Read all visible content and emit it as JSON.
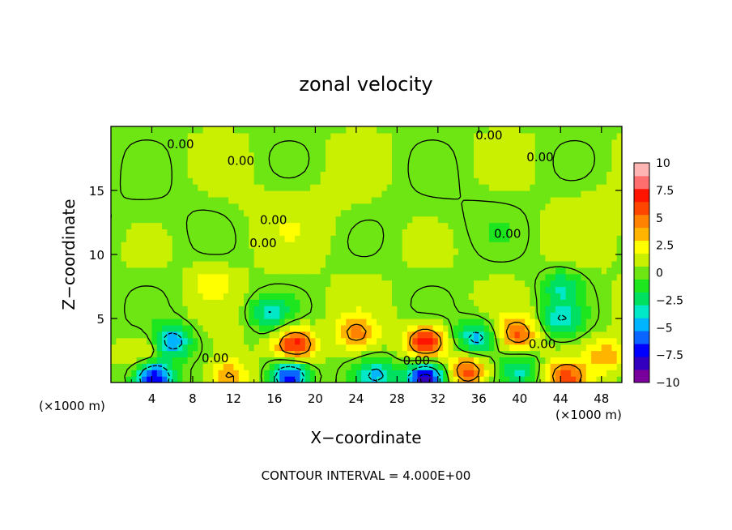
{
  "chart_data": {
    "type": "heatmap",
    "title": "zonal velocity",
    "xlabel": "X−coordinate",
    "ylabel": "Z−coordinate",
    "x_unit_label": "(×1000 m)",
    "x_unit_label_right": "(×1000 m)",
    "xlim": [
      0,
      50
    ],
    "ylim": [
      0,
      20
    ],
    "x_ticks": [
      4,
      8,
      12,
      16,
      20,
      24,
      28,
      32,
      36,
      40,
      44,
      48
    ],
    "x_tick_labels": [
      "4",
      "8",
      "12",
      "16",
      "20",
      "24",
      "28",
      "32",
      "36",
      "40",
      "44",
      "48"
    ],
    "y_ticks": [
      5,
      10,
      15
    ],
    "y_tick_labels": [
      "5",
      "10",
      "15"
    ],
    "footer": "CONTOUR INTERVAL = 4.000E+00",
    "contour_label": "0.00",
    "contour_labels": [
      {
        "x": 6.8,
        "y": 18.6
      },
      {
        "x": 12.7,
        "y": 17.3
      },
      {
        "x": 37.0,
        "y": 19.3
      },
      {
        "x": 42.0,
        "y": 17.6
      },
      {
        "x": 15.9,
        "y": 12.7
      },
      {
        "x": 14.9,
        "y": 10.9
      },
      {
        "x": 38.8,
        "y": 11.6
      },
      {
        "x": 10.2,
        "y": 1.9
      },
      {
        "x": 29.9,
        "y": 1.7
      },
      {
        "x": 42.2,
        "y": 3.0
      }
    ],
    "colorbar": {
      "min": -10,
      "max": 10,
      "tick_values": [
        10,
        7.5,
        5,
        2.5,
        0,
        -2.5,
        -5,
        -7.5,
        -10
      ],
      "tick_labels": [
        "10",
        "7.5",
        "5",
        "2.5",
        "0",
        "−2.5",
        "−5",
        "−7.5",
        "−10"
      ],
      "colors": [
        "#7a009b",
        "#3400c0",
        "#0000ff",
        "#0a64ff",
        "#00b4ff",
        "#00e8c8",
        "#00e060",
        "#1ee61e",
        "#6ee614",
        "#c8f000",
        "#ffff00",
        "#ffb400",
        "#ff8200",
        "#ff4600",
        "#ff1400",
        "#ff6e6e",
        "#ffb4b4"
      ]
    },
    "background_value": 0.5,
    "features": [
      {
        "x": 18.0,
        "y": 3.0,
        "value": 7.5
      },
      {
        "x": 30.8,
        "y": 3.2,
        "value": 7.8
      },
      {
        "x": 24.0,
        "y": 3.8,
        "value": 4.5
      },
      {
        "x": 11.5,
        "y": 0.6,
        "value": 5.0
      },
      {
        "x": 35.0,
        "y": 0.9,
        "value": 6.0
      },
      {
        "x": 39.8,
        "y": 3.8,
        "value": 5.5
      },
      {
        "x": 44.5,
        "y": 0.5,
        "value": 5.5
      },
      {
        "x": 48.5,
        "y": 2.2,
        "value": 4.0
      },
      {
        "x": 10.0,
        "y": 8.0,
        "value": 2.5
      },
      {
        "x": 3.5,
        "y": 2.5,
        "value": 2.5
      },
      {
        "x": 4.2,
        "y": 0.4,
        "value": -9.0
      },
      {
        "x": 6.0,
        "y": 3.2,
        "value": -5.5
      },
      {
        "x": 17.5,
        "y": 0.5,
        "value": -8.5
      },
      {
        "x": 30.8,
        "y": 0.3,
        "value": -10.0
      },
      {
        "x": 26.0,
        "y": 0.6,
        "value": -4.0
      },
      {
        "x": 35.8,
        "y": 3.5,
        "value": -5.0
      },
      {
        "x": 15.5,
        "y": 5.5,
        "value": -3.5
      },
      {
        "x": 44.0,
        "y": 5.0,
        "value": -3.5
      },
      {
        "x": 44.0,
        "y": 7.5,
        "value": -2.8
      },
      {
        "x": 40.0,
        "y": 1.0,
        "value": -2.8
      }
    ]
  }
}
